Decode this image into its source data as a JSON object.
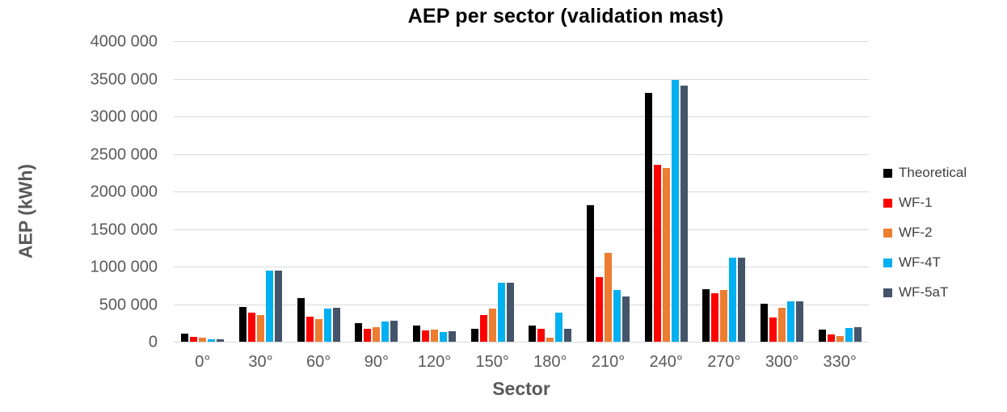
{
  "title": "AEP per sector (validation mast)",
  "chart_data": {
    "type": "bar",
    "title": "AEP per sector (validation mast)",
    "xlabel": "Sector",
    "ylabel": "AEP (kWh)",
    "ylim": [
      0,
      4000000
    ],
    "ytick_step": 500000,
    "ytick_labels": [
      "0",
      "500 000",
      "1000 000",
      "1500 000",
      "2000 000",
      "2500 000",
      "3000 000",
      "3500 000",
      "4000 000"
    ],
    "grid": true,
    "legend_position": "right",
    "categories": [
      "0°",
      "30°",
      "60°",
      "90°",
      "120°",
      "150°",
      "180°",
      "210°",
      "240°",
      "270°",
      "300°",
      "330°"
    ],
    "series": [
      {
        "name": "Theoretical",
        "color": "#000000",
        "values": [
          110000,
          460000,
          580000,
          250000,
          220000,
          175000,
          210000,
          1820000,
          3310000,
          700000,
          510000,
          160000
        ]
      },
      {
        "name": "WF-1",
        "color": "#FF0000",
        "values": [
          65000,
          385000,
          330000,
          170000,
          150000,
          350000,
          170000,
          860000,
          2350000,
          650000,
          320000,
          95000
        ]
      },
      {
        "name": "WF-2",
        "color": "#ED7D31",
        "values": [
          50000,
          350000,
          305000,
          190000,
          165000,
          440000,
          50000,
          1185000,
          2310000,
          685000,
          450000,
          75000
        ]
      },
      {
        "name": "WF-4T",
        "color": "#00B0F0",
        "values": [
          35000,
          950000,
          445000,
          270000,
          125000,
          785000,
          390000,
          690000,
          3480000,
          1120000,
          540000,
          185000
        ]
      },
      {
        "name": "WF-5aT",
        "color": "#44546A",
        "values": [
          30000,
          950000,
          450000,
          275000,
          140000,
          785000,
          170000,
          600000,
          3410000,
          1120000,
          540000,
          190000
        ]
      }
    ]
  },
  "colors": {
    "background": "#FFFFFF",
    "gridline": "#D9D9D9",
    "axis_text": "#595959",
    "title_text": "#000000",
    "legend_text": "#404040"
  }
}
